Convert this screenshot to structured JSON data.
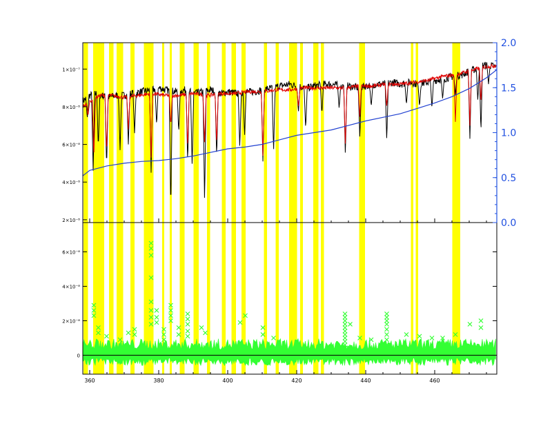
{
  "chart_data": [
    {
      "panel": "top",
      "type": "line",
      "xlim": [
        358,
        478
      ],
      "ylim_left": [
        1.85e-08,
        1.14e-07
      ],
      "ylim_right": [
        0.0,
        2.0
      ],
      "grid": false,
      "yticks_left": [
        {
          "v": 2e-08,
          "label": "2×10⁻⁸"
        },
        {
          "v": 4e-08,
          "label": "4×10⁻⁸"
        },
        {
          "v": 6e-08,
          "label": "6×10⁻⁸"
        },
        {
          "v": 8e-08,
          "label": "8×10⁻⁸"
        },
        {
          "v": 1e-07,
          "label": "1×10⁻⁷"
        }
      ],
      "yticks_right": [
        {
          "v": 0.0,
          "label": "0.0"
        },
        {
          "v": 0.5,
          "label": "0.5"
        },
        {
          "v": 1.0,
          "label": "1.0"
        },
        {
          "v": 1.5,
          "label": "1.5"
        },
        {
          "v": 2.0,
          "label": "2.0"
        }
      ],
      "series": [
        {
          "color": "#000000",
          "axis": "left",
          "x": [
            358,
            360,
            362,
            365,
            368,
            370,
            372,
            375,
            378,
            380,
            382,
            385,
            388,
            390,
            393,
            395,
            398,
            400,
            403,
            405,
            408,
            410,
            413,
            415,
            418,
            420,
            423,
            425,
            428,
            430,
            433,
            435,
            438,
            440,
            443,
            445,
            448,
            450,
            453,
            455,
            458,
            460,
            463,
            465,
            468,
            470,
            472,
            474,
            476,
            478
          ],
          "y": [
            8.3e-08,
            8.6e-08,
            8.7e-08,
            8.5e-08,
            8.6e-08,
            8.6e-08,
            8.7e-08,
            8.8e-08,
            8.9e-08,
            9e-08,
            8.9e-08,
            8.8e-08,
            8.9e-08,
            8.7e-08,
            8.8e-08,
            8.9e-08,
            8.7e-08,
            8.8e-08,
            8.7e-08,
            8.8e-08,
            8.8e-08,
            8.9e-08,
            9e-08,
            9.1e-08,
            9.2e-08,
            9.1e-08,
            9e-08,
            9.1e-08,
            9.2e-08,
            9.2e-08,
            9.1e-08,
            9.1e-08,
            9e-08,
            9.1e-08,
            9.2e-08,
            9.2e-08,
            9.3e-08,
            9.2e-08,
            9.3e-08,
            9.2e-08,
            9.3e-08,
            9.4e-08,
            9.5e-08,
            9.6e-08,
            9.7e-08,
            9.9e-08,
            1e-07,
            1.02e-07,
            1.02e-07,
            1.01e-07
          ],
          "dips": [
            [
              359.3,
              7.4e-08
            ],
            [
              361,
              4.6e-08
            ],
            [
              362.5,
              5.8e-08
            ],
            [
              364.9,
              4.8e-08
            ],
            [
              368.8,
              5.7e-08
            ],
            [
              371.2,
              6e-08
            ],
            [
              373,
              6.6e-08
            ],
            [
              377.8,
              4.5e-08
            ],
            [
              379.4,
              7e-08
            ],
            [
              383.5,
              2.5e-08
            ],
            [
              385.8,
              6.6e-08
            ],
            [
              388.4,
              5e-08
            ],
            [
              389.7,
              4.8e-08
            ],
            [
              393.3,
              2.9e-08
            ],
            [
              396.8,
              5.3e-08
            ],
            [
              403.5,
              5.8e-08
            ],
            [
              404.9,
              6.4e-08
            ],
            [
              410.2,
              5.1e-08
            ],
            [
              413.3,
              5.6e-08
            ],
            [
              420.5,
              7.7e-08
            ],
            [
              422.6,
              6.8e-08
            ],
            [
              427.3,
              7.6e-08
            ],
            [
              432.3,
              7.9e-08
            ],
            [
              434.1,
              5.4e-08
            ],
            [
              438.3,
              6.3e-08
            ],
            [
              441.6,
              8e-08
            ],
            [
              446.1,
              6.2e-08
            ],
            [
              451.8,
              8.1e-08
            ],
            [
              455.6,
              8e-08
            ],
            [
              459.2,
              7.9e-08
            ],
            [
              462.3,
              8.4e-08
            ],
            [
              466,
              8.6e-08
            ],
            [
              470.2,
              6.3e-08
            ],
            [
              472.5,
              8.3e-08
            ],
            [
              473.4,
              6.6e-08
            ],
            [
              475.6,
              9.2e-08
            ]
          ]
        },
        {
          "color": "#e00000",
          "axis": "left",
          "x": [
            358,
            360,
            363,
            366,
            370,
            374,
            378,
            382,
            386,
            390,
            394,
            398,
            402,
            406,
            410,
            414,
            418,
            422,
            426,
            430,
            434,
            438,
            442,
            446,
            450,
            454,
            458,
            462,
            466,
            470,
            474,
            478
          ],
          "y": [
            8e-08,
            8.3e-08,
            8.6e-08,
            8.6e-08,
            8.5e-08,
            8.6e-08,
            8.7e-08,
            8.6e-08,
            8.6e-08,
            8.7e-08,
            8.6e-08,
            8.7e-08,
            8.7e-08,
            8.8e-08,
            8.8e-08,
            8.9e-08,
            8.9e-08,
            9e-08,
            9e-08,
            9e-08,
            9e-08,
            9.1e-08,
            9.1e-08,
            9.2e-08,
            9.2e-08,
            9.3e-08,
            9.4e-08,
            9.6e-08,
            9.7e-08,
            9.9e-08,
            1.01e-07,
            1.02e-07
          ],
          "dips": [
            [
              359.5,
              7.5e-08
            ],
            [
              361.2,
              5.3e-08
            ],
            [
              364.9,
              5.5e-08
            ],
            [
              371.2,
              6.8e-08
            ],
            [
              377.8,
              5.3e-08
            ],
            [
              383.5,
              7e-08
            ],
            [
              388.4,
              5.8e-08
            ],
            [
              393.3,
              6e-08
            ],
            [
              396.8,
              6e-08
            ],
            [
              410.2,
              5.4e-08
            ],
            [
              420.5,
              8e-08
            ],
            [
              434.1,
              5.9e-08
            ],
            [
              438.3,
              7.4e-08
            ],
            [
              446.1,
              8e-08
            ],
            [
              466,
              7.2e-08
            ],
            [
              470.2,
              7e-08
            ],
            [
              473.4,
              8.2e-08
            ]
          ]
        },
        {
          "color": "#1f3fd0",
          "axis": "right",
          "x": [
            358,
            360,
            365,
            370,
            375,
            380,
            385,
            390,
            395,
            400,
            405,
            410,
            415,
            420,
            425,
            430,
            435,
            440,
            445,
            450,
            455,
            460,
            465,
            470,
            475,
            478
          ],
          "y": [
            0.52,
            0.58,
            0.63,
            0.66,
            0.68,
            0.69,
            0.71,
            0.74,
            0.78,
            0.82,
            0.84,
            0.87,
            0.92,
            0.97,
            1.0,
            1.03,
            1.08,
            1.13,
            1.17,
            1.21,
            1.27,
            1.33,
            1.4,
            1.49,
            1.61,
            1.7
          ]
        }
      ]
    },
    {
      "panel": "bottom",
      "type": "scatter",
      "xlim": [
        358,
        478
      ],
      "ylim": [
        -1.1e-08,
        7.7e-08
      ],
      "grid": false,
      "xticks": [
        {
          "v": 360,
          "label": "360"
        },
        {
          "v": 380,
          "label": "380"
        },
        {
          "v": 400,
          "label": "400"
        },
        {
          "v": 420,
          "label": "420"
        },
        {
          "v": 440,
          "label": "440"
        },
        {
          "v": 460,
          "label": "460"
        }
      ],
      "yticks": [
        {
          "v": 0,
          "label": "0"
        },
        {
          "v": 2e-08,
          "label": "2×10⁻⁸"
        },
        {
          "v": 4e-08,
          "label": "4×10⁻⁸"
        },
        {
          "v": 6e-08,
          "label": "6×10⁻⁸"
        }
      ],
      "series": [
        {
          "color": "#33ff33",
          "marker": "x",
          "x": [
            361.2,
            361.2,
            361.2,
            362.5,
            362.5,
            364.9,
            368.8,
            371.2,
            373,
            373,
            377.8,
            377.8,
            377.8,
            377.8,
            377.8,
            377.8,
            377.8,
            377.8,
            379.4,
            379.4,
            379.4,
            381.5,
            381.5,
            381.5,
            383.5,
            383.5,
            383.5,
            383.5,
            385.8,
            385.8,
            388.4,
            388.4,
            388.4,
            388.4,
            388.4,
            392.4,
            393.5,
            403.6,
            405.1,
            410.2,
            410.2,
            413.3,
            434,
            434,
            434,
            434,
            434,
            434,
            434,
            434,
            434,
            434,
            434,
            434,
            435.5,
            438.3,
            441.6,
            446.1,
            446.1,
            446.1,
            446.1,
            446.1,
            446.1,
            446.1,
            451.8,
            455.6,
            459.2,
            462.3,
            466,
            470.2,
            473.4,
            473.4
          ],
          "y": [
            2.9e-08,
            2.6e-08,
            2.3e-08,
            1.6e-08,
            1.3e-08,
            1.1e-08,
            9e-09,
            1.3e-08,
            1.5e-08,
            1.2e-08,
            6.5e-08,
            6.2e-08,
            5.8e-08,
            4.5e-08,
            3.1e-08,
            2.6e-08,
            2.2e-08,
            1.8e-08,
            2.6e-08,
            2.2e-08,
            1.9e-08,
            1.5e-08,
            1.2e-08,
            9e-09,
            2.9e-08,
            2.6e-08,
            2.3e-08,
            2e-08,
            1.6e-08,
            1.2e-08,
            2.4e-08,
            2.1e-08,
            1.8e-08,
            1.4e-08,
            1.1e-08,
            1.6e-08,
            1.3e-08,
            1.9e-08,
            2.3e-08,
            1.6e-08,
            1.2e-08,
            1e-08,
            2.4e-08,
            2.2e-08,
            2e-08,
            1.8e-08,
            1.6e-08,
            1.4e-08,
            1.2e-08,
            1e-08,
            8e-09,
            6e-09,
            4e-09,
            2e-09,
            1.8e-08,
            1e-08,
            9e-09,
            2.4e-08,
            2.2e-08,
            2e-08,
            1.8e-08,
            1.5e-08,
            1.2e-08,
            9e-09,
            1.2e-08,
            1.1e-08,
            1e-08,
            1e-08,
            1.2e-08,
            1.8e-08,
            2e-08,
            1.6e-08
          ],
          "band": {
            "upper": 8e-09,
            "lower": -5e-09
          }
        },
        {
          "color": "#000000",
          "type": "line",
          "x": [
            358,
            478
          ],
          "y": [
            0,
            0
          ]
        }
      ]
    }
  ],
  "masks": {
    "color": "#ffff00",
    "ranges": [
      [
        358.2,
        359.5
      ],
      [
        361.0,
        364.2
      ],
      [
        365.6,
        366.9
      ],
      [
        367.8,
        369.7
      ],
      [
        371.8,
        373.0
      ],
      [
        375.7,
        378.5
      ],
      [
        381.0,
        381.6
      ],
      [
        383.2,
        383.8
      ],
      [
        386.1,
        387.5
      ],
      [
        390.1,
        391.6
      ],
      [
        394.0,
        394.9
      ],
      [
        398.3,
        399.4
      ],
      [
        401.1,
        402.4
      ],
      [
        404.0,
        405.2
      ],
      [
        410.5,
        411.4
      ],
      [
        413.9,
        414.8
      ],
      [
        417.8,
        420.1
      ],
      [
        421.0,
        421.8
      ],
      [
        424.8,
        426.3
      ],
      [
        427.0,
        427.9
      ],
      [
        438.1,
        439.8
      ],
      [
        453.1,
        453.8
      ],
      [
        454.5,
        455.2
      ],
      [
        465.1,
        467.4
      ]
    ]
  }
}
